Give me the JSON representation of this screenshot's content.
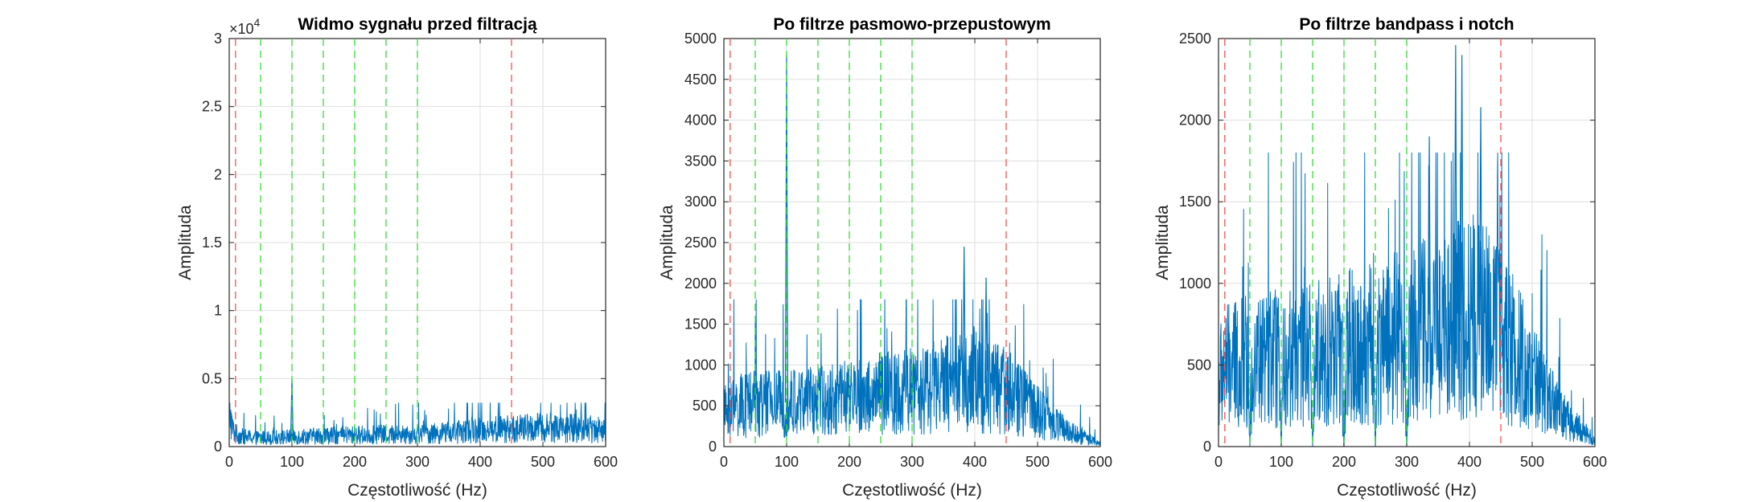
{
  "figure": {
    "background": "#ffffff"
  },
  "colors": {
    "signal": "#0072bd",
    "red_line": "#ff4d4d",
    "green_line": "#33dd33"
  },
  "chart_data": [
    {
      "type": "line",
      "title": "Widmo sygnału przed filtracją",
      "xlabel": "Częstotliwość (Hz)",
      "ylabel": "Amplituda",
      "xlim": [
        0,
        600
      ],
      "ylim": [
        0,
        30000
      ],
      "grid": true,
      "xticks": [
        0,
        100,
        200,
        300,
        400,
        500,
        600
      ],
      "xtick_labels": [
        "0",
        "100",
        "200",
        "300",
        "400",
        "500",
        "600"
      ],
      "yticks": [
        0,
        5000,
        10000,
        15000,
        20000,
        25000,
        30000
      ],
      "ytick_labels": [
        "0",
        "0.5",
        "1",
        "1.5",
        "2",
        "2.5",
        "3"
      ],
      "y_exponent": {
        "base": "×10",
        "power": "4"
      },
      "red_lines_x": [
        10,
        450
      ],
      "green_lines_x": [
        50,
        100,
        150,
        200,
        250,
        300
      ],
      "envelope": {
        "x": [
          0,
          2,
          5,
          10,
          20,
          40,
          60,
          80,
          100,
          150,
          200,
          250,
          300,
          350,
          400,
          450,
          500,
          550,
          600
        ],
        "y": [
          4200,
          2200,
          1300,
          950,
          750,
          650,
          650,
          680,
          720,
          800,
          850,
          880,
          900,
          1000,
          1250,
          1300,
          1400,
          1350,
          1250
        ]
      },
      "spikes": [
        {
          "x": 100,
          "y": 5000
        }
      ],
      "peak_cap": 3200
    },
    {
      "type": "line",
      "title": "Po filtrze pasmowo-przepustowym",
      "xlabel": "Częstotliwość (Hz)",
      "ylabel": "Amplituda",
      "xlim": [
        0,
        600
      ],
      "ylim": [
        0,
        5000
      ],
      "grid": true,
      "xticks": [
        0,
        100,
        200,
        300,
        400,
        500,
        600
      ],
      "xtick_labels": [
        "0",
        "100",
        "200",
        "300",
        "400",
        "500",
        "600"
      ],
      "yticks": [
        0,
        500,
        1000,
        1500,
        2000,
        2500,
        3000,
        3500,
        4000,
        4500,
        5000
      ],
      "ytick_labels": [
        "0",
        "500",
        "1000",
        "1500",
        "2000",
        "2500",
        "3000",
        "3500",
        "4000",
        "4500",
        "5000"
      ],
      "red_lines_x": [
        10,
        450
      ],
      "green_lines_x": [
        50,
        100,
        150,
        200,
        250,
        300
      ],
      "envelope": {
        "x": [
          0,
          10,
          50,
          100,
          150,
          200,
          250,
          300,
          350,
          400,
          450,
          500,
          550,
          600
        ],
        "y": [
          400,
          480,
          520,
          540,
          560,
          600,
          640,
          680,
          760,
          820,
          700,
          420,
          180,
          40
        ]
      },
      "spikes": [
        {
          "x": 100,
          "y": 4800
        },
        {
          "x": 383,
          "y": 2450
        },
        {
          "x": 418,
          "y": 2070
        }
      ],
      "peak_cap": 1800
    },
    {
      "type": "line",
      "title": "Po filtrze bandpass i notch",
      "xlabel": "Częstotliwość (Hz)",
      "ylabel": "Amplituda",
      "xlim": [
        0,
        600
      ],
      "ylim": [
        0,
        2500
      ],
      "grid": true,
      "xticks": [
        0,
        100,
        200,
        300,
        400,
        500,
        600
      ],
      "xtick_labels": [
        "0",
        "100",
        "200",
        "300",
        "400",
        "500",
        "600"
      ],
      "yticks": [
        0,
        500,
        1000,
        1500,
        2000,
        2500
      ],
      "ytick_labels": [
        "0",
        "500",
        "1000",
        "1500",
        "2000",
        "2500"
      ],
      "red_lines_x": [
        10,
        450
      ],
      "green_lines_x": [
        50,
        100,
        150,
        200,
        250,
        300
      ],
      "notches_x": [
        50,
        100,
        150,
        200,
        250,
        300
      ],
      "envelope": {
        "x": [
          0,
          10,
          50,
          100,
          150,
          200,
          250,
          300,
          350,
          400,
          450,
          500,
          550,
          600
        ],
        "y": [
          400,
          480,
          520,
          540,
          560,
          600,
          640,
          680,
          760,
          820,
          700,
          420,
          180,
          40
        ]
      },
      "spikes": [
        {
          "x": 378,
          "y": 2460
        },
        {
          "x": 388,
          "y": 2400
        },
        {
          "x": 418,
          "y": 2080
        },
        {
          "x": 336,
          "y": 1900
        }
      ],
      "peak_cap": 1800
    }
  ]
}
